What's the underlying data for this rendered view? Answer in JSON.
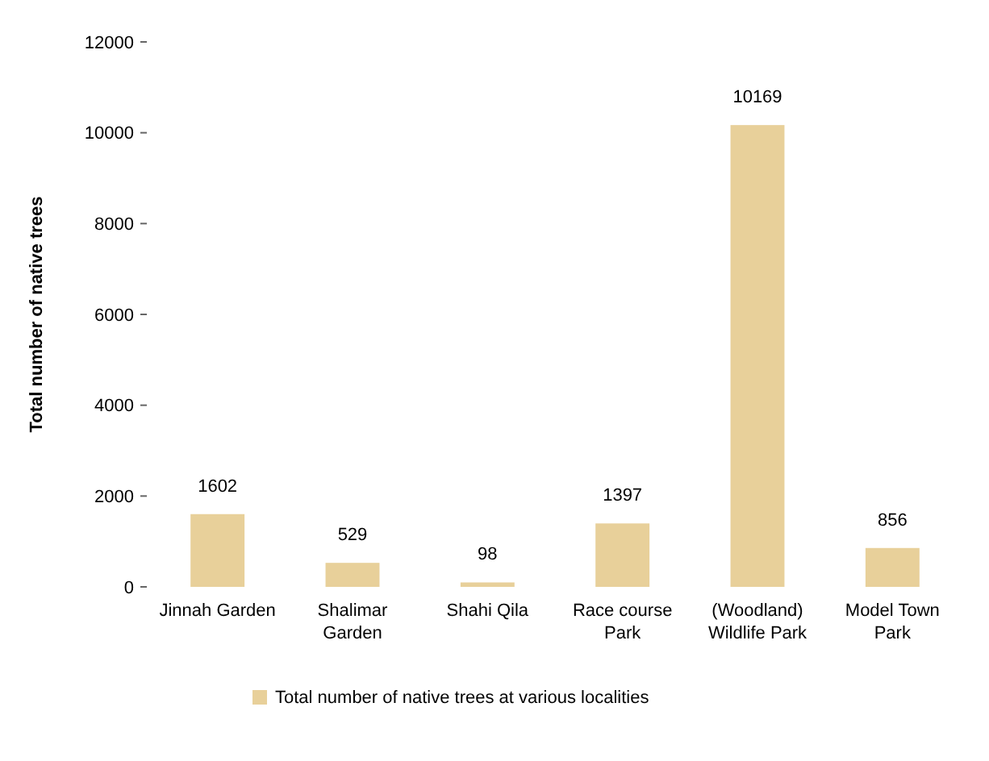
{
  "chart_data": {
    "type": "bar",
    "ylabel": "Total number of native trees",
    "categories": [
      "Jinnah Garden",
      "Shalimar Garden",
      "Shahi Qila",
      "Race course Park",
      "(Woodland) Wildlife Park",
      "Model Town Park"
    ],
    "series": [
      {
        "name": "Total number of native trees at various localities",
        "color": "#e8d09a",
        "values": [
          1602,
          529,
          98,
          1397,
          10169,
          856
        ]
      }
    ],
    "ylim": [
      0,
      12000
    ],
    "yticks": [
      0,
      2000,
      4000,
      6000,
      8000,
      10000,
      12000
    ],
    "data_labels": true,
    "legend": "bottom"
  }
}
